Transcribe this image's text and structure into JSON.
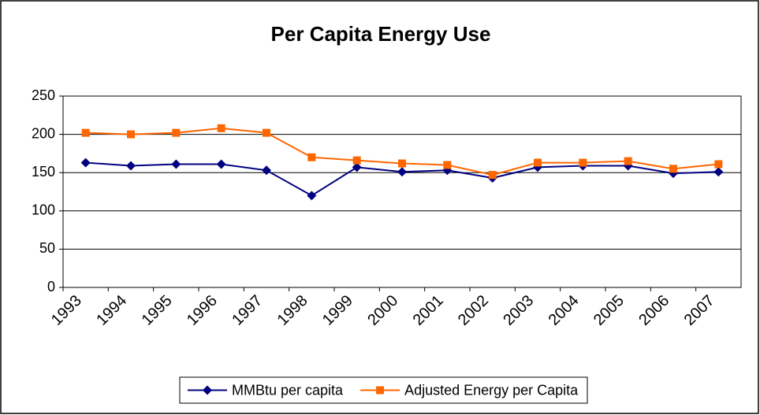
{
  "chart_data": {
    "type": "line",
    "title": "Per Capita Energy Use",
    "categories": [
      "1993",
      "1994",
      "1995",
      "1996",
      "1997",
      "1998",
      "1999",
      "2000",
      "2001",
      "2002",
      "2003",
      "2004",
      "2005",
      "2006",
      "2007"
    ],
    "series": [
      {
        "name": "MMBtu per capita",
        "color": "#000080",
        "marker": "diamond",
        "values": [
          163,
          159,
          161,
          161,
          153,
          120,
          157,
          151,
          153,
          143,
          157,
          159,
          159,
          149,
          151
        ]
      },
      {
        "name": "Adjusted Energy per Capita",
        "color": "#ff6600",
        "marker": "square",
        "values": [
          202,
          200,
          202,
          208,
          202,
          170,
          166,
          162,
          160,
          147,
          163,
          163,
          165,
          155,
          161
        ]
      }
    ],
    "ylim": [
      0,
      250
    ],
    "yticks": [
      0,
      50,
      100,
      150,
      200,
      250
    ],
    "grid": true,
    "legend": "bottom"
  }
}
